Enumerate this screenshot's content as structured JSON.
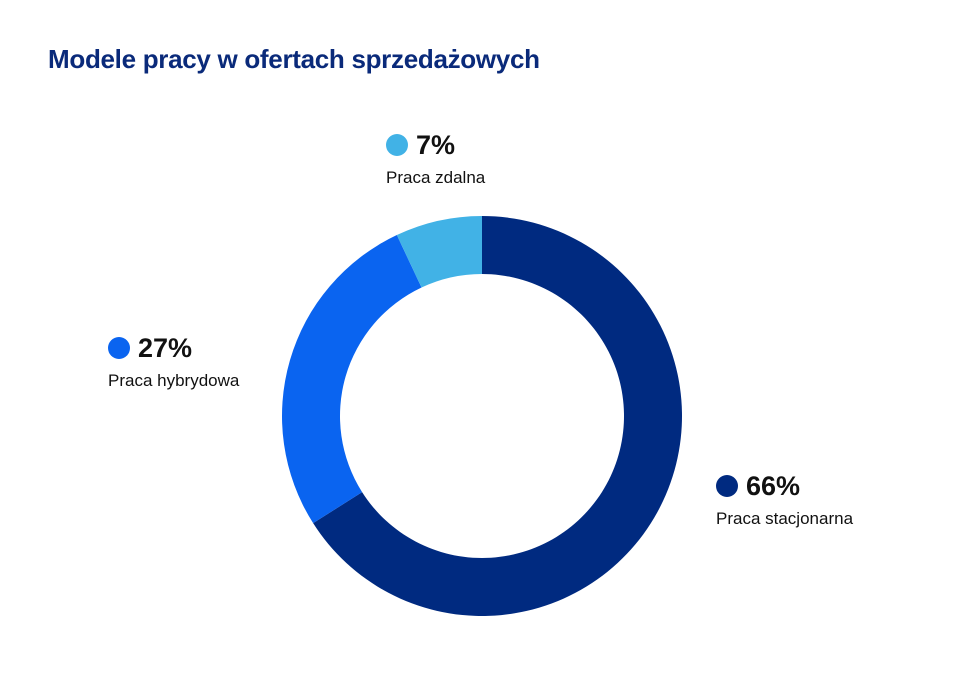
{
  "chart_data": {
    "type": "pie",
    "title": "Modele pracy w ofertach sprzedażowych",
    "donut": true,
    "unit": "%",
    "slices": [
      {
        "label": "Praca stacjonarna",
        "value": 66,
        "value_label": "66%",
        "color": "#002a80"
      },
      {
        "label": "Praca hybrydowa",
        "value": 27,
        "value_label": "27%",
        "color": "#0a64f0"
      },
      {
        "label": "Praca zdalna",
        "value": 7,
        "value_label": "7%",
        "color": "#41b2e6"
      }
    ]
  }
}
